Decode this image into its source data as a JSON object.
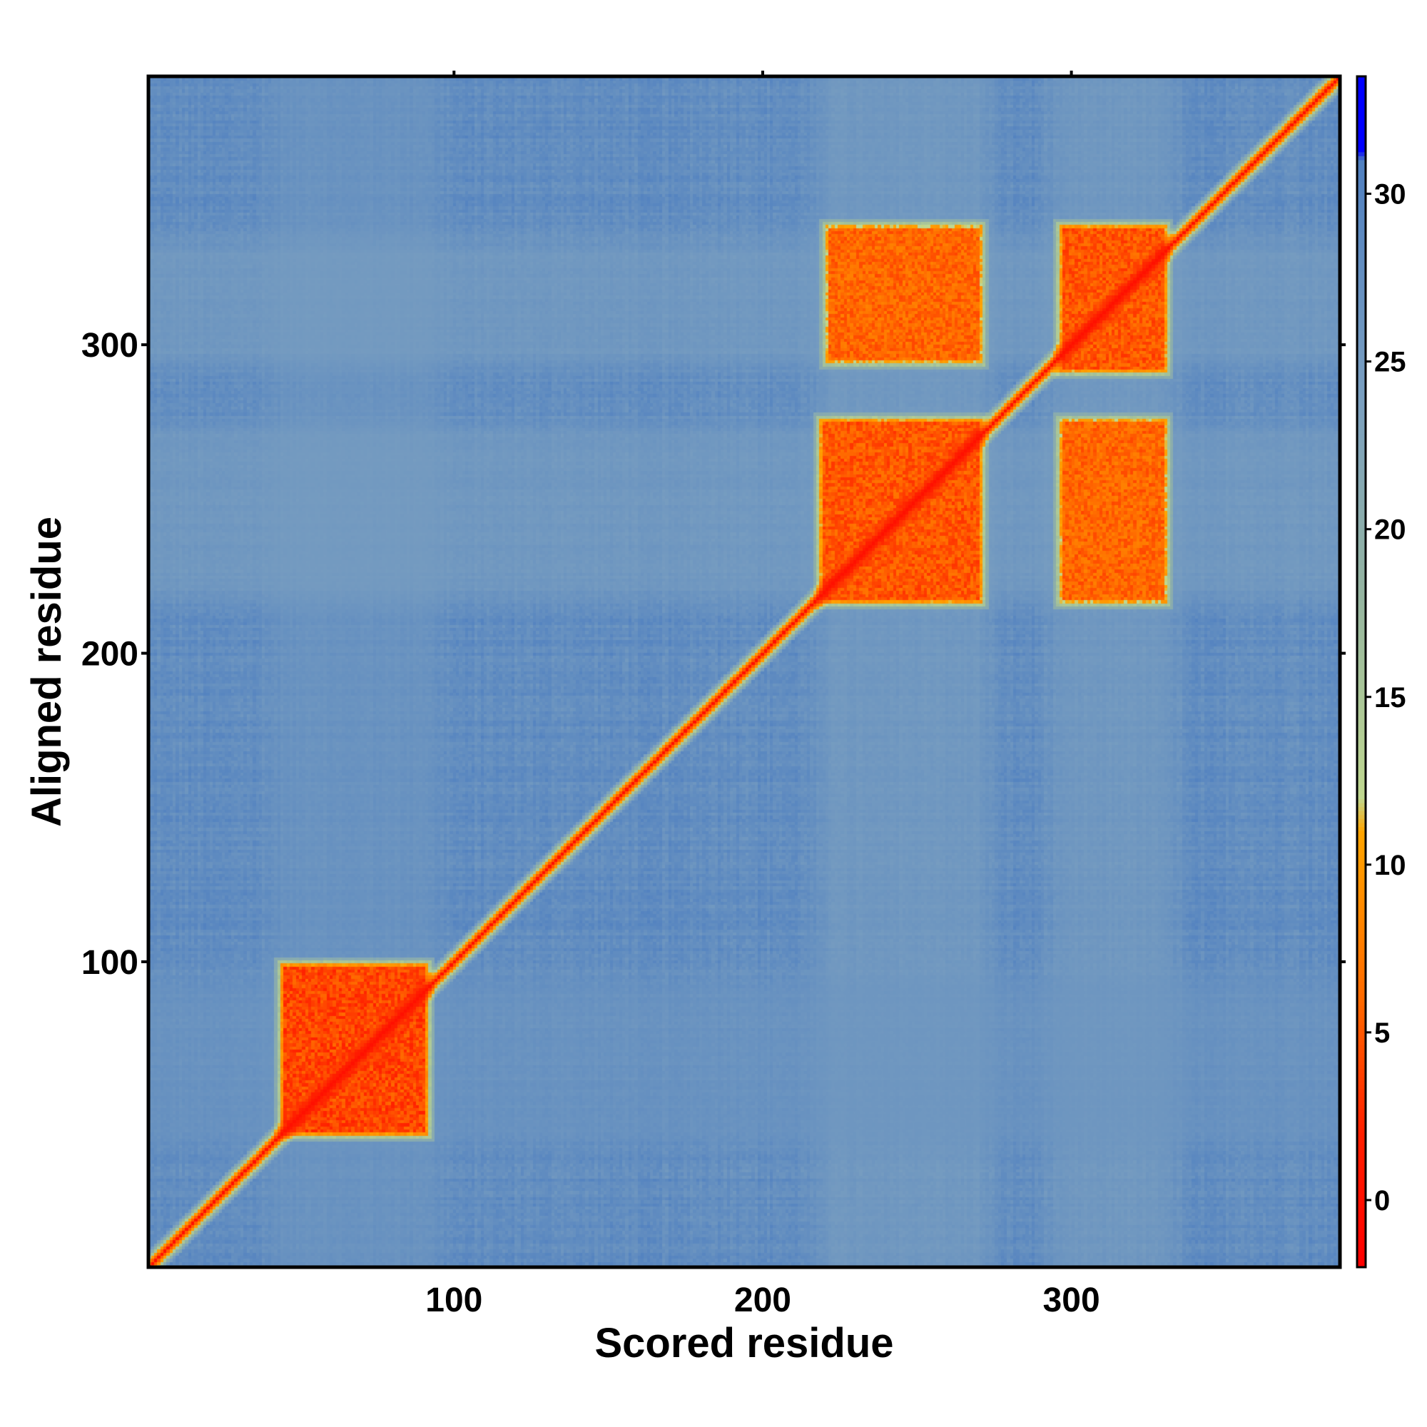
{
  "chart_data": {
    "type": "heatmap",
    "title": "",
    "xlabel": "Scored residue",
    "ylabel": "Aligned residue",
    "xlim": [
      1,
      387
    ],
    "ylim": [
      1,
      387
    ],
    "x_ticks": [
      100,
      200,
      300
    ],
    "y_ticks": [
      100,
      200,
      300
    ],
    "x_tick_labels": [
      "100",
      "200",
      "300"
    ],
    "y_tick_labels": [
      "100",
      "200",
      "300"
    ],
    "value_range": [
      -2,
      33.5
    ],
    "colorbar": {
      "ticks": [
        0,
        5,
        10,
        15,
        20,
        25,
        30
      ],
      "tick_labels": [
        "0",
        "5",
        "10",
        "15",
        "20",
        "25",
        "30"
      ],
      "stops": [
        {
          "value": -2,
          "color": "#ff0000"
        },
        {
          "value": 2,
          "color": "#ff2000"
        },
        {
          "value": 6,
          "color": "#ff6a00"
        },
        {
          "value": 11,
          "color": "#ffa500"
        },
        {
          "value": 12,
          "color": "#c0d890"
        },
        {
          "value": 18,
          "color": "#95b5a0"
        },
        {
          "value": 24,
          "color": "#7a9fc0"
        },
        {
          "value": 31,
          "color": "#5080c0"
        },
        {
          "value": 31.3,
          "color": "#0000ff"
        },
        {
          "value": 33.5,
          "color": "#0000ff"
        }
      ]
    },
    "background_value": 28,
    "diagonal_value": 0,
    "blocks": [
      {
        "x": [
          45,
          90
        ],
        "y": [
          45,
          98
        ],
        "value": 2
      },
      {
        "x": [
          220,
          270
        ],
        "y": [
          218,
          275
        ],
        "value": 3
      },
      {
        "x": [
          222,
          270
        ],
        "y": [
          296,
          338
        ],
        "value": 4
      },
      {
        "x": [
          298,
          330
        ],
        "y": [
          293,
          338
        ],
        "value": 3
      },
      {
        "x": [
          298,
          330
        ],
        "y": [
          218,
          275
        ],
        "value": 4
      }
    ],
    "bands": [
      {
        "axis": "x",
        "range": [
          222,
          270
        ],
        "value": 24
      },
      {
        "axis": "x",
        "range": [
          298,
          330
        ],
        "value": 24
      },
      {
        "axis": "x",
        "range": [
          45,
          90
        ],
        "value": 26
      },
      {
        "axis": "y",
        "range": [
          222,
          270
        ],
        "value": 24
      },
      {
        "axis": "y",
        "range": [
          298,
          330
        ],
        "value": 24
      },
      {
        "axis": "y",
        "range": [
          45,
          90
        ],
        "value": 26
      }
    ]
  }
}
